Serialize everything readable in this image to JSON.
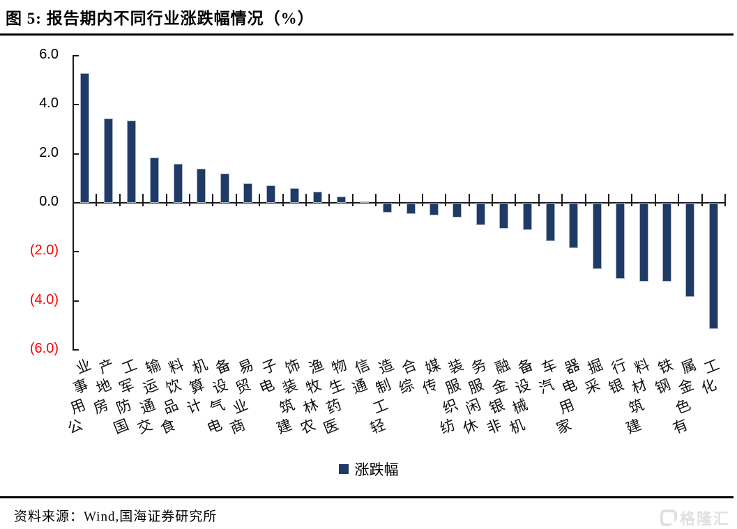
{
  "header": {
    "title": "图 5: 报告期内不同行业涨跌幅情况（%）"
  },
  "chart_data": {
    "type": "bar",
    "title": "图 5: 报告期内不同行业涨跌幅情况（%）",
    "categories": [
      "公用事业",
      "房地产",
      "国防军工",
      "交通运输",
      "食品饮料",
      "计算机",
      "电气设备",
      "商业贸易",
      "电子",
      "建筑装饰",
      "农林牧渔",
      "医药生物",
      "通信",
      "轻工制造",
      "综合",
      "传媒",
      "纺织服装",
      "休闲服务",
      "非银金融",
      "机械设备",
      "汽车",
      "家用电器",
      "采掘",
      "银行",
      "建筑材料",
      "钢铁",
      "有色金属",
      "化工"
    ],
    "values": [
      5.3,
      3.45,
      3.35,
      1.85,
      1.6,
      1.4,
      1.2,
      0.8,
      0.7,
      0.6,
      0.45,
      0.25,
      0.05,
      -0.4,
      -0.45,
      -0.5,
      -0.6,
      -0.9,
      -1.05,
      -1.1,
      -1.55,
      -1.85,
      -2.7,
      -3.1,
      -3.2,
      -3.2,
      -3.85,
      -5.15
    ],
    "series_name": "涨跌幅",
    "xlabel": "",
    "ylabel": "",
    "ylim": [
      -6.0,
      6.0
    ],
    "grid": false,
    "legend_position": "bottom",
    "bar_color": "#1F3A64",
    "negative_tick_color": "#FF0000",
    "y_ticks": [
      {
        "value": 6,
        "label": "6.0",
        "color": "#000000"
      },
      {
        "value": 4,
        "label": "4.0",
        "color": "#000000"
      },
      {
        "value": 2,
        "label": "2.0",
        "color": "#000000"
      },
      {
        "value": 0,
        "label": "0.0",
        "color": "#000000"
      },
      {
        "value": -2,
        "label": "(2.0)",
        "color": "#FF0000"
      },
      {
        "value": -4,
        "label": "(4.0)",
        "color": "#FF0000"
      },
      {
        "value": -6,
        "label": "(6.0)",
        "color": "#FF0000"
      }
    ]
  },
  "legend": {
    "label": "涨跌幅",
    "swatch_color": "#1F3A64"
  },
  "footer": {
    "source": "资料来源：Wind,国海证券研究所"
  },
  "watermark": {
    "text": "格隆汇"
  }
}
